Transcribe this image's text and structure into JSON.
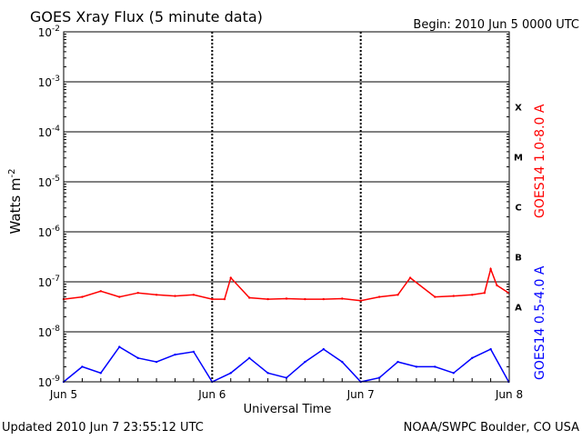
{
  "header": {
    "title": "GOES Xray Flux (5 minute data)",
    "begin_label": "Begin:  2010 Jun 5 0000 UTC"
  },
  "footer": {
    "updated": "Updated 2010 Jun  7 23:55:12 UTC",
    "credit": "NOAA/SWPC Boulder, CO USA"
  },
  "colors": {
    "long_channel": "#ff0000",
    "short_channel": "#0000ff",
    "axes": "#000000"
  },
  "chart_data": {
    "type": "line",
    "xlabel": "Universal Time",
    "ylabel_text": "Watts m",
    "ylabel_sup": "-2",
    "yscale": "log",
    "ylim": [
      1e-09,
      0.01
    ],
    "xlim": [
      "2010-06-05",
      "2010-06-08"
    ],
    "x_ticks": [
      "Jun 5",
      "Jun 6",
      "Jun 7",
      "Jun 8"
    ],
    "y_ticks": [
      {
        "base": "10",
        "exp": "-9"
      },
      {
        "base": "10",
        "exp": "-8"
      },
      {
        "base": "10",
        "exp": "-7"
      },
      {
        "base": "10",
        "exp": "-6"
      },
      {
        "base": "10",
        "exp": "-5"
      },
      {
        "base": "10",
        "exp": "-4"
      },
      {
        "base": "10",
        "exp": "-3"
      },
      {
        "base": "10",
        "exp": "-2"
      }
    ],
    "flare_classes": [
      {
        "label": "A",
        "threshold": 1e-08
      },
      {
        "label": "B",
        "threshold": 1e-07
      },
      {
        "label": "C",
        "threshold": 1e-06
      },
      {
        "label": "M",
        "threshold": 1e-05
      },
      {
        "label": "X",
        "threshold": 0.0001
      }
    ],
    "series": [
      {
        "name": "GOES14 1.0-8.0 A",
        "color": "#ff0000",
        "x": [
          "2010-06-05 00:00",
          "2010-06-05 03:00",
          "2010-06-05 06:00",
          "2010-06-05 09:00",
          "2010-06-05 12:00",
          "2010-06-05 15:00",
          "2010-06-05 18:00",
          "2010-06-05 21:00",
          "2010-06-06 00:00",
          "2010-06-06 02:00",
          "2010-06-06 03:00",
          "2010-06-06 06:00",
          "2010-06-06 09:00",
          "2010-06-06 12:00",
          "2010-06-06 15:00",
          "2010-06-06 18:00",
          "2010-06-06 21:00",
          "2010-06-07 00:00",
          "2010-06-07 03:00",
          "2010-06-07 06:00",
          "2010-06-07 08:00",
          "2010-06-07 12:00",
          "2010-06-07 15:00",
          "2010-06-07 18:00",
          "2010-06-07 20:00",
          "2010-06-07 21:00",
          "2010-06-07 22:00",
          "2010-06-07 23:55"
        ],
        "y": [
          4.5e-08,
          5e-08,
          6.5e-08,
          5e-08,
          6e-08,
          5.5e-08,
          5.2e-08,
          5.5e-08,
          4.5e-08,
          4.5e-08,
          1.2e-07,
          4.8e-08,
          4.5e-08,
          4.6e-08,
          4.5e-08,
          4.5e-08,
          4.6e-08,
          4.2e-08,
          5e-08,
          5.5e-08,
          1.2e-07,
          5e-08,
          5.2e-08,
          5.5e-08,
          6e-08,
          1.8e-07,
          8.5e-08,
          6e-08
        ]
      },
      {
        "name": "GOES14 0.5-4.0 A",
        "color": "#0000ff",
        "x": [
          "2010-06-05 00:00",
          "2010-06-05 03:00",
          "2010-06-05 06:00",
          "2010-06-05 09:00",
          "2010-06-05 12:00",
          "2010-06-05 15:00",
          "2010-06-05 18:00",
          "2010-06-05 21:00",
          "2010-06-06 00:00",
          "2010-06-06 03:00",
          "2010-06-06 06:00",
          "2010-06-06 09:00",
          "2010-06-06 12:00",
          "2010-06-06 15:00",
          "2010-06-06 18:00",
          "2010-06-06 21:00",
          "2010-06-07 00:00",
          "2010-06-07 03:00",
          "2010-06-07 06:00",
          "2010-06-07 09:00",
          "2010-06-07 12:00",
          "2010-06-07 15:00",
          "2010-06-07 18:00",
          "2010-06-07 21:00",
          "2010-06-07 23:55"
        ],
        "y": [
          1e-09,
          2e-09,
          1.5e-09,
          5e-09,
          3e-09,
          2.5e-09,
          3.5e-09,
          4e-09,
          1e-09,
          1.5e-09,
          3e-09,
          1.5e-09,
          1.2e-09,
          2.5e-09,
          4.5e-09,
          2.5e-09,
          1e-09,
          1.2e-09,
          2.5e-09,
          2e-09,
          2e-09,
          1.5e-09,
          3e-09,
          4.5e-09,
          1e-09
        ]
      }
    ]
  }
}
